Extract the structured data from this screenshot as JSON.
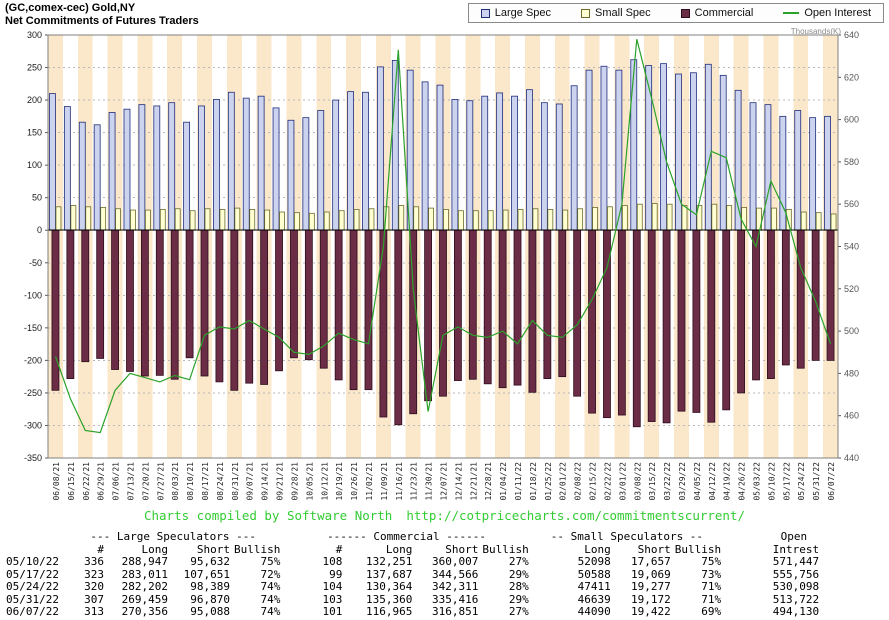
{
  "header": {
    "title_line1": "(GC,comex-cec) Gold,NY",
    "title_line2": "Net Commitments of Futures Traders"
  },
  "legend": {
    "items": [
      {
        "label": "Large Spec"
      },
      {
        "label": "Small Spec"
      },
      {
        "label": "Commercial"
      },
      {
        "label": "Open Interest"
      }
    ]
  },
  "chart_data": {
    "type": "bar",
    "title": "Net Commitments of Futures Traders",
    "right_axis_title": "Thousands(K)",
    "categories": [
      "06/08/21",
      "06/15/21",
      "06/22/21",
      "06/29/21",
      "07/06/21",
      "07/13/21",
      "07/20/21",
      "07/27/21",
      "08/03/21",
      "08/10/21",
      "08/17/21",
      "08/24/21",
      "08/31/21",
      "09/07/21",
      "09/14/21",
      "09/21/21",
      "09/28/21",
      "10/05/21",
      "10/12/21",
      "10/19/21",
      "10/26/21",
      "11/02/21",
      "11/09/21",
      "11/16/21",
      "11/23/21",
      "11/30/21",
      "12/07/21",
      "12/14/21",
      "12/21/21",
      "12/28/21",
      "01/04/22",
      "01/11/22",
      "01/18/22",
      "01/25/22",
      "02/01/22",
      "02/08/22",
      "02/15/22",
      "02/22/22",
      "03/01/22",
      "03/08/22",
      "03/15/22",
      "03/22/22",
      "03/29/22",
      "04/05/22",
      "04/12/22",
      "04/19/22",
      "04/26/22",
      "05/03/22",
      "05/10/22",
      "05/17/22",
      "05/24/22",
      "05/31/22",
      "06/07/22"
    ],
    "series": [
      {
        "name": "Large Spec",
        "type": "bar",
        "axis": "left",
        "values": [
          210,
          190,
          166,
          162,
          181,
          186,
          193,
          191,
          196,
          166,
          191,
          201,
          212,
          203,
          206,
          188,
          169,
          173,
          184,
          200,
          213,
          212,
          251,
          261,
          246,
          228,
          223,
          201,
          199,
          206,
          211,
          206,
          216,
          196,
          194,
          222,
          246,
          252,
          246,
          262,
          253,
          256,
          240,
          242,
          255,
          238,
          215,
          196,
          193,
          175,
          184,
          173,
          175
        ]
      },
      {
        "name": "Small Spec",
        "type": "bar",
        "axis": "left",
        "values": [
          36,
          38,
          36,
          35,
          33,
          31,
          31,
          32,
          33,
          30,
          33,
          32,
          34,
          32,
          31,
          28,
          27,
          26,
          28,
          30,
          32,
          33,
          36,
          38,
          36,
          34,
          32,
          30,
          30,
          30,
          31,
          32,
          33,
          32,
          31,
          33,
          35,
          36,
          38,
          40,
          41,
          40,
          38,
          38,
          40,
          38,
          35,
          34,
          34,
          32,
          28,
          27,
          25
        ]
      },
      {
        "name": "Commercial",
        "type": "bar",
        "axis": "left",
        "values": [
          -246,
          -228,
          -202,
          -197,
          -214,
          -217,
          -224,
          -223,
          -229,
          -196,
          -224,
          -233,
          -246,
          -235,
          -237,
          -216,
          -196,
          -199,
          -212,
          -230,
          -245,
          -245,
          -287,
          -299,
          -282,
          -262,
          -255,
          -231,
          -229,
          -236,
          -242,
          -238,
          -249,
          -228,
          -225,
          -255,
          -281,
          -288,
          -284,
          -302,
          -294,
          -296,
          -278,
          -280,
          -295,
          -276,
          -250,
          -230,
          -228,
          -207,
          -212,
          -200,
          -200
        ]
      },
      {
        "name": "Open Interest",
        "type": "line",
        "axis": "right",
        "values": [
          488,
          468,
          453,
          452,
          472,
          480,
          478,
          476,
          479,
          477,
          498,
          502,
          501,
          505,
          501,
          497,
          490,
          489,
          493,
          499,
          496,
          494,
          540,
          633,
          520,
          462,
          498,
          502,
          498,
          497,
          500,
          494,
          505,
          498,
          497,
          503,
          515,
          530,
          560,
          638,
          610,
          580,
          560,
          555,
          585,
          582,
          553,
          540,
          571,
          556,
          530,
          514,
          494
        ]
      }
    ],
    "left_axis": {
      "min": -350,
      "max": 300,
      "step": 50,
      "ticks": [
        300,
        250,
        200,
        150,
        100,
        50,
        0,
        -50,
        -100,
        -150,
        -200,
        -250,
        -300,
        -350
      ]
    },
    "right_axis": {
      "min": 440,
      "max": 640,
      "step": 20,
      "ticks": [
        640,
        620,
        600,
        580,
        560,
        540,
        520,
        500,
        480,
        460,
        440
      ]
    },
    "legend_position": "top-right",
    "grid": true,
    "colors": {
      "large_spec_fill": "#ccd3ee",
      "large_spec_stroke": "#1f2d7a",
      "small_spec_fill": "#ffffd2",
      "small_spec_stroke": "#6b6b2a",
      "commercial_fill": "#6b2c46",
      "commercial_stroke": "#2e0d1d",
      "open_interest": "#2aa22a",
      "stripe": "#fbe7c9",
      "grid": "#b9b9b9",
      "credit_green": "#33cc33"
    }
  },
  "footer": {
    "credit": "Charts compiled by Software North",
    "url": "http://cotpricecharts.com/commitmentscurrent/"
  },
  "table": {
    "group_headers": [
      "--- Large Speculators ---",
      "------ Commercial ------",
      "-- Small Speculators --",
      "Open"
    ],
    "col_headers": [
      "#",
      "Long",
      "Short",
      "Bullish",
      "#",
      "Long",
      "Short",
      "Bullish",
      "Long",
      "Short",
      "Bullish",
      "Intrest"
    ],
    "rows": [
      {
        "date": "05/10/22",
        "ls_num": "336",
        "ls_long": "288,947",
        "ls_short": "95,632",
        "ls_bullish": "75%",
        "c_num": "108",
        "c_long": "132,251",
        "c_short": "360,007",
        "c_bullish": "27%",
        "ss_long": "52098",
        "ss_short": "17,657",
        "ss_bullish": "75%",
        "oi": "571,447"
      },
      {
        "date": "05/17/22",
        "ls_num": "323",
        "ls_long": "283,011",
        "ls_short": "107,651",
        "ls_bullish": "72%",
        "c_num": "99",
        "c_long": "137,687",
        "c_short": "344,566",
        "c_bullish": "29%",
        "ss_long": "50588",
        "ss_short": "19,069",
        "ss_bullish": "73%",
        "oi": "555,756"
      },
      {
        "date": "05/24/22",
        "ls_num": "320",
        "ls_long": "282,202",
        "ls_short": "98,389",
        "ls_bullish": "74%",
        "c_num": "104",
        "c_long": "130,364",
        "c_short": "342,311",
        "c_bullish": "28%",
        "ss_long": "47411",
        "ss_short": "19,277",
        "ss_bullish": "71%",
        "oi": "530,098"
      },
      {
        "date": "05/31/22",
        "ls_num": "307",
        "ls_long": "269,459",
        "ls_short": "96,870",
        "ls_bullish": "74%",
        "c_num": "103",
        "c_long": "135,360",
        "c_short": "335,416",
        "c_bullish": "29%",
        "ss_long": "46639",
        "ss_short": "19,172",
        "ss_bullish": "71%",
        "oi": "513,722"
      },
      {
        "date": "06/07/22",
        "ls_num": "313",
        "ls_long": "270,356",
        "ls_short": "95,088",
        "ls_bullish": "74%",
        "c_num": "101",
        "c_long": "116,965",
        "c_short": "316,851",
        "c_bullish": "27%",
        "ss_long": "44090",
        "ss_short": "19,422",
        "ss_bullish": "69%",
        "oi": "494,130"
      }
    ]
  }
}
